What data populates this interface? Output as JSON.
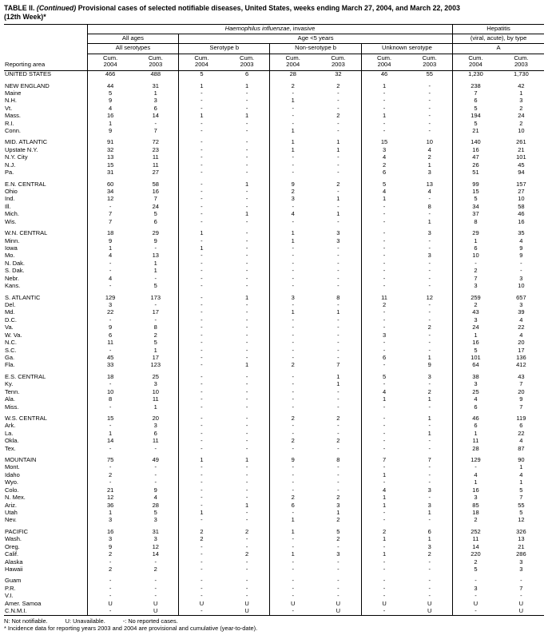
{
  "title": {
    "prefix": "TABLE II. ",
    "continued": "(Continued)",
    "rest": " Provisional cases of selected notifiable diseases, United States, weeks ending March 27, 2004, and March 22, 2003",
    "line2": "(12th Week)*"
  },
  "header": {
    "hib_italic": "Haemophilus influenzae",
    "hib_suffix": ", invasive",
    "hepatitis": "Hepatitis",
    "all_ages": "All ages",
    "age_under5": "Age <5 years",
    "hep_type": "(viral, acute), by type",
    "all_serotypes": "All serotypes",
    "serotype_b": "Serotype b",
    "non_serotype_b": "Non-serotype b",
    "unknown_serotype": "Unknown serotype",
    "hep_a": "A",
    "reporting_area": "Reporting area",
    "cum": "Cum.",
    "y2004": "2004",
    "y2003": "2003"
  },
  "table": {
    "rows": [
      {
        "area": "UNITED STATES",
        "gap": false,
        "v": [
          "466",
          "488",
          "5",
          "6",
          "28",
          "32",
          "46",
          "55",
          "1,230",
          "1,730"
        ]
      },
      {
        "area": "NEW ENGLAND",
        "gap": true,
        "v": [
          "44",
          "31",
          "1",
          "1",
          "2",
          "2",
          "1",
          "-",
          "238",
          "42"
        ]
      },
      {
        "area": "Maine",
        "gap": false,
        "v": [
          "5",
          "1",
          "-",
          "-",
          "-",
          "-",
          "-",
          "-",
          "7",
          "1"
        ]
      },
      {
        "area": "N.H.",
        "gap": false,
        "v": [
          "9",
          "3",
          "-",
          "-",
          "1",
          "-",
          "-",
          "-",
          "6",
          "3"
        ]
      },
      {
        "area": "Vt.",
        "gap": false,
        "v": [
          "4",
          "6",
          "-",
          "-",
          "-",
          "-",
          "-",
          "-",
          "5",
          "2"
        ]
      },
      {
        "area": "Mass.",
        "gap": false,
        "v": [
          "16",
          "14",
          "1",
          "1",
          "-",
          "2",
          "1",
          "-",
          "194",
          "24"
        ]
      },
      {
        "area": "R.I.",
        "gap": false,
        "v": [
          "1",
          "-",
          "-",
          "-",
          "-",
          "-",
          "-",
          "-",
          "5",
          "2"
        ]
      },
      {
        "area": "Conn.",
        "gap": false,
        "v": [
          "9",
          "7",
          "-",
          "-",
          "1",
          "-",
          "-",
          "-",
          "21",
          "10"
        ]
      },
      {
        "area": "MID. ATLANTIC",
        "gap": true,
        "v": [
          "91",
          "72",
          "-",
          "-",
          "1",
          "1",
          "15",
          "10",
          "140",
          "261"
        ]
      },
      {
        "area": "Upstate N.Y.",
        "gap": false,
        "v": [
          "32",
          "23",
          "-",
          "-",
          "1",
          "1",
          "3",
          "4",
          "16",
          "21"
        ]
      },
      {
        "area": "N.Y. City",
        "gap": false,
        "v": [
          "13",
          "11",
          "-",
          "-",
          "-",
          "-",
          "4",
          "2",
          "47",
          "101"
        ]
      },
      {
        "area": "N.J.",
        "gap": false,
        "v": [
          "15",
          "11",
          "-",
          "-",
          "-",
          "-",
          "2",
          "1",
          "26",
          "45"
        ]
      },
      {
        "area": "Pa.",
        "gap": false,
        "v": [
          "31",
          "27",
          "-",
          "-",
          "-",
          "-",
          "6",
          "3",
          "51",
          "94"
        ]
      },
      {
        "area": "E.N. CENTRAL",
        "gap": true,
        "v": [
          "60",
          "58",
          "-",
          "1",
          "9",
          "2",
          "5",
          "13",
          "99",
          "157"
        ]
      },
      {
        "area": "Ohio",
        "gap": false,
        "v": [
          "34",
          "16",
          "-",
          "-",
          "2",
          "-",
          "4",
          "4",
          "15",
          "27"
        ]
      },
      {
        "area": "Ind.",
        "gap": false,
        "v": [
          "12",
          "7",
          "-",
          "-",
          "3",
          "1",
          "1",
          "-",
          "5",
          "10"
        ]
      },
      {
        "area": "Ill.",
        "gap": false,
        "v": [
          "-",
          "24",
          "-",
          "-",
          "-",
          "-",
          "-",
          "8",
          "34",
          "58"
        ]
      },
      {
        "area": "Mich.",
        "gap": false,
        "v": [
          "7",
          "5",
          "-",
          "1",
          "4",
          "1",
          "-",
          "-",
          "37",
          "46"
        ]
      },
      {
        "area": "Wis.",
        "gap": false,
        "v": [
          "7",
          "6",
          "-",
          "-",
          "-",
          "-",
          "-",
          "1",
          "8",
          "16"
        ]
      },
      {
        "area": "W.N. CENTRAL",
        "gap": true,
        "v": [
          "18",
          "29",
          "1",
          "-",
          "1",
          "3",
          "-",
          "3",
          "29",
          "35"
        ]
      },
      {
        "area": "Minn.",
        "gap": false,
        "v": [
          "9",
          "9",
          "-",
          "-",
          "1",
          "3",
          "-",
          "-",
          "1",
          "4"
        ]
      },
      {
        "area": "Iowa",
        "gap": false,
        "v": [
          "1",
          "-",
          "1",
          "-",
          "-",
          "-",
          "-",
          "-",
          "6",
          "9"
        ]
      },
      {
        "area": "Mo.",
        "gap": false,
        "v": [
          "4",
          "13",
          "-",
          "-",
          "-",
          "-",
          "-",
          "3",
          "10",
          "9"
        ]
      },
      {
        "area": "N. Dak.",
        "gap": false,
        "v": [
          "-",
          "1",
          "-",
          "-",
          "-",
          "-",
          "-",
          "-",
          "-",
          "-"
        ]
      },
      {
        "area": "S. Dak.",
        "gap": false,
        "v": [
          "-",
          "1",
          "-",
          "-",
          "-",
          "-",
          "-",
          "-",
          "2",
          "-"
        ]
      },
      {
        "area": "Nebr.",
        "gap": false,
        "v": [
          "4",
          "-",
          "-",
          "-",
          "-",
          "-",
          "-",
          "-",
          "7",
          "3"
        ]
      },
      {
        "area": "Kans.",
        "gap": false,
        "v": [
          "-",
          "5",
          "-",
          "-",
          "-",
          "-",
          "-",
          "-",
          "3",
          "10"
        ]
      },
      {
        "area": "S. ATLANTIC",
        "gap": true,
        "v": [
          "129",
          "173",
          "-",
          "1",
          "3",
          "8",
          "11",
          "12",
          "259",
          "657"
        ]
      },
      {
        "area": "Del.",
        "gap": false,
        "v": [
          "3",
          "-",
          "-",
          "-",
          "-",
          "-",
          "2",
          "-",
          "2",
          "3"
        ]
      },
      {
        "area": "Md.",
        "gap": false,
        "v": [
          "22",
          "17",
          "-",
          "-",
          "1",
          "1",
          "-",
          "-",
          "43",
          "39"
        ]
      },
      {
        "area": "D.C.",
        "gap": false,
        "v": [
          "-",
          "-",
          "-",
          "-",
          "-",
          "-",
          "-",
          "-",
          "3",
          "4"
        ]
      },
      {
        "area": "Va.",
        "gap": false,
        "v": [
          "9",
          "8",
          "-",
          "-",
          "-",
          "-",
          "-",
          "2",
          "24",
          "22"
        ]
      },
      {
        "area": "W. Va.",
        "gap": false,
        "v": [
          "6",
          "2",
          "-",
          "-",
          "-",
          "-",
          "3",
          "-",
          "1",
          "4"
        ]
      },
      {
        "area": "N.C.",
        "gap": false,
        "v": [
          "11",
          "5",
          "-",
          "-",
          "-",
          "-",
          "-",
          "-",
          "16",
          "20"
        ]
      },
      {
        "area": "S.C.",
        "gap": false,
        "v": [
          "-",
          "1",
          "-",
          "-",
          "-",
          "-",
          "-",
          "-",
          "5",
          "17"
        ]
      },
      {
        "area": "Ga.",
        "gap": false,
        "v": [
          "45",
          "17",
          "-",
          "-",
          "-",
          "-",
          "6",
          "1",
          "101",
          "136"
        ]
      },
      {
        "area": "Fla.",
        "gap": false,
        "v": [
          "33",
          "123",
          "-",
          "1",
          "2",
          "7",
          "-",
          "9",
          "64",
          "412"
        ]
      },
      {
        "area": "E.S. CENTRAL",
        "gap": true,
        "v": [
          "18",
          "25",
          "-",
          "-",
          "-",
          "1",
          "5",
          "3",
          "38",
          "43"
        ]
      },
      {
        "area": "Ky.",
        "gap": false,
        "v": [
          "-",
          "3",
          "-",
          "-",
          "-",
          "1",
          "-",
          "-",
          "3",
          "7"
        ]
      },
      {
        "area": "Tenn.",
        "gap": false,
        "v": [
          "10",
          "10",
          "-",
          "-",
          "-",
          "-",
          "4",
          "2",
          "25",
          "20"
        ]
      },
      {
        "area": "Ala.",
        "gap": false,
        "v": [
          "8",
          "11",
          "-",
          "-",
          "-",
          "-",
          "1",
          "1",
          "4",
          "9"
        ]
      },
      {
        "area": "Miss.",
        "gap": false,
        "v": [
          "-",
          "1",
          "-",
          "-",
          "-",
          "-",
          "-",
          "-",
          "6",
          "7"
        ]
      },
      {
        "area": "W.S. CENTRAL",
        "gap": true,
        "v": [
          "15",
          "20",
          "-",
          "-",
          "2",
          "2",
          "-",
          "1",
          "46",
          "119"
        ]
      },
      {
        "area": "Ark.",
        "gap": false,
        "v": [
          "-",
          "3",
          "-",
          "-",
          "-",
          "-",
          "-",
          "-",
          "6",
          "6"
        ]
      },
      {
        "area": "La.",
        "gap": false,
        "v": [
          "1",
          "6",
          "-",
          "-",
          "-",
          "-",
          "-",
          "1",
          "1",
          "22"
        ]
      },
      {
        "area": "Okla.",
        "gap": false,
        "v": [
          "14",
          "11",
          "-",
          "-",
          "2",
          "2",
          "-",
          "-",
          "11",
          "4"
        ]
      },
      {
        "area": "Tex.",
        "gap": false,
        "v": [
          "-",
          "-",
          "-",
          "-",
          "-",
          "-",
          "-",
          "-",
          "28",
          "87"
        ]
      },
      {
        "area": "MOUNTAIN",
        "gap": true,
        "v": [
          "75",
          "49",
          "1",
          "1",
          "9",
          "8",
          "7",
          "7",
          "129",
          "90"
        ]
      },
      {
        "area": "Mont.",
        "gap": false,
        "v": [
          "-",
          "-",
          "-",
          "-",
          "-",
          "-",
          "-",
          "-",
          "-",
          "1"
        ]
      },
      {
        "area": "Idaho",
        "gap": false,
        "v": [
          "2",
          "-",
          "-",
          "-",
          "-",
          "-",
          "1",
          "-",
          "4",
          "4"
        ]
      },
      {
        "area": "Wyo.",
        "gap": false,
        "v": [
          "-",
          "-",
          "-",
          "-",
          "-",
          "-",
          "-",
          "-",
          "1",
          "1"
        ]
      },
      {
        "area": "Colo.",
        "gap": false,
        "v": [
          "21",
          "9",
          "-",
          "-",
          "-",
          "-",
          "4",
          "3",
          "16",
          "5"
        ]
      },
      {
        "area": "N. Mex.",
        "gap": false,
        "v": [
          "12",
          "4",
          "-",
          "-",
          "2",
          "2",
          "1",
          "-",
          "3",
          "7"
        ]
      },
      {
        "area": "Ariz.",
        "gap": false,
        "v": [
          "36",
          "28",
          "-",
          "1",
          "6",
          "3",
          "1",
          "3",
          "85",
          "55"
        ]
      },
      {
        "area": "Utah",
        "gap": false,
        "v": [
          "1",
          "5",
          "1",
          "-",
          "-",
          "1",
          "-",
          "1",
          "18",
          "5"
        ]
      },
      {
        "area": "Nev.",
        "gap": false,
        "v": [
          "3",
          "3",
          "-",
          "-",
          "1",
          "2",
          "-",
          "-",
          "2",
          "12"
        ]
      },
      {
        "area": "PACIFIC",
        "gap": true,
        "v": [
          "16",
          "31",
          "2",
          "2",
          "1",
          "5",
          "2",
          "6",
          "252",
          "326"
        ]
      },
      {
        "area": "Wash.",
        "gap": false,
        "v": [
          "3",
          "3",
          "2",
          "-",
          "-",
          "2",
          "1",
          "1",
          "11",
          "13"
        ]
      },
      {
        "area": "Oreg.",
        "gap": false,
        "v": [
          "9",
          "12",
          "-",
          "-",
          "-",
          "-",
          "-",
          "3",
          "14",
          "21"
        ]
      },
      {
        "area": "Calif.",
        "gap": false,
        "v": [
          "2",
          "14",
          "-",
          "2",
          "1",
          "3",
          "1",
          "2",
          "220",
          "286"
        ]
      },
      {
        "area": "Alaska",
        "gap": false,
        "v": [
          "-",
          "-",
          "-",
          "-",
          "-",
          "-",
          "-",
          "-",
          "2",
          "3"
        ]
      },
      {
        "area": "Hawaii",
        "gap": false,
        "v": [
          "2",
          "2",
          "-",
          "-",
          "-",
          "-",
          "-",
          "-",
          "5",
          "3"
        ]
      },
      {
        "area": "Guam",
        "gap": true,
        "v": [
          "-",
          "-",
          "-",
          "-",
          "-",
          "-",
          "-",
          "-",
          "-",
          "-"
        ]
      },
      {
        "area": "P.R.",
        "gap": false,
        "v": [
          "-",
          "-",
          "-",
          "-",
          "-",
          "-",
          "-",
          "-",
          "3",
          "7"
        ]
      },
      {
        "area": "V.I.",
        "gap": false,
        "v": [
          "-",
          "-",
          "-",
          "-",
          "-",
          "-",
          "-",
          "-",
          "-",
          "-"
        ]
      },
      {
        "area": "Amer. Samoa",
        "gap": false,
        "v": [
          "U",
          "U",
          "U",
          "U",
          "U",
          "U",
          "U",
          "U",
          "U",
          "U"
        ]
      },
      {
        "area": "C.N.M.I.",
        "gap": false,
        "v": [
          "-",
          "U",
          "-",
          "U",
          "-",
          "U",
          "-",
          "U",
          "-",
          "U"
        ]
      }
    ]
  },
  "footnotes": {
    "n_note": "N: Not notifiable.",
    "u_note": "U: Unavailable.",
    "dash_note": "-: No reported cases.",
    "incidence_note": "* Incidence data for reporting years 2003 and 2004 are provisional and cumulative (year-to-date)."
  }
}
